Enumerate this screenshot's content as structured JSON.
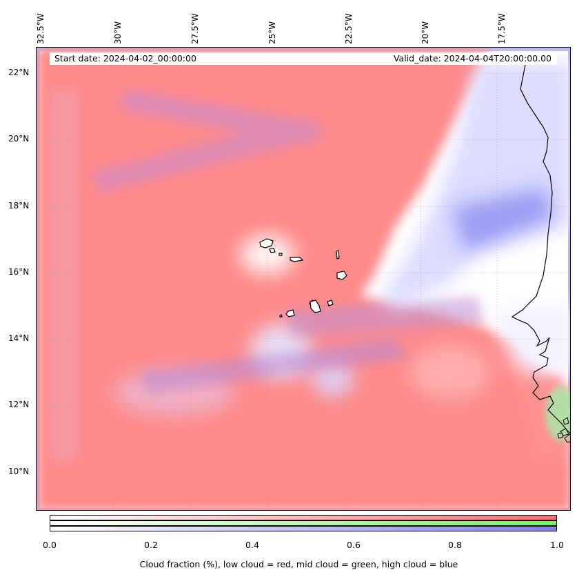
{
  "map": {
    "start_date": "Start date: 2024-04-02_00:00:00",
    "valid_date": "Valid_date: 2024-04-04T20:00:00.00",
    "lon_labels": [
      "32.5°W",
      "30°W",
      "27.5°W",
      "25°W",
      "22.5°W",
      "20°W",
      "17.5°W"
    ],
    "lat_labels": [
      "22°N",
      "20°N",
      "18°N",
      "16°N",
      "14°N",
      "12°N",
      "10°N"
    ],
    "land_color": "#ffffff",
    "low_cloud_color": "#ff7f7f",
    "mid_cloud_color": "#7fe07f",
    "high_cloud_color": "#7f7fff"
  },
  "colorbar": {
    "ticks": [
      "0.0",
      "0.2",
      "0.4",
      "0.6",
      "0.8",
      "1.0"
    ],
    "caption": "Cloud fraction (%), low cloud = red, mid cloud = green, high cloud = blue",
    "bars": [
      {
        "name": "low",
        "from": "#ffffff",
        "to": "#ff6e6e"
      },
      {
        "name": "mid",
        "from": "#ffffff",
        "to": "#7cee6a"
      },
      {
        "name": "high",
        "from": "#ffffff",
        "to": "#7f7ff0"
      }
    ]
  }
}
